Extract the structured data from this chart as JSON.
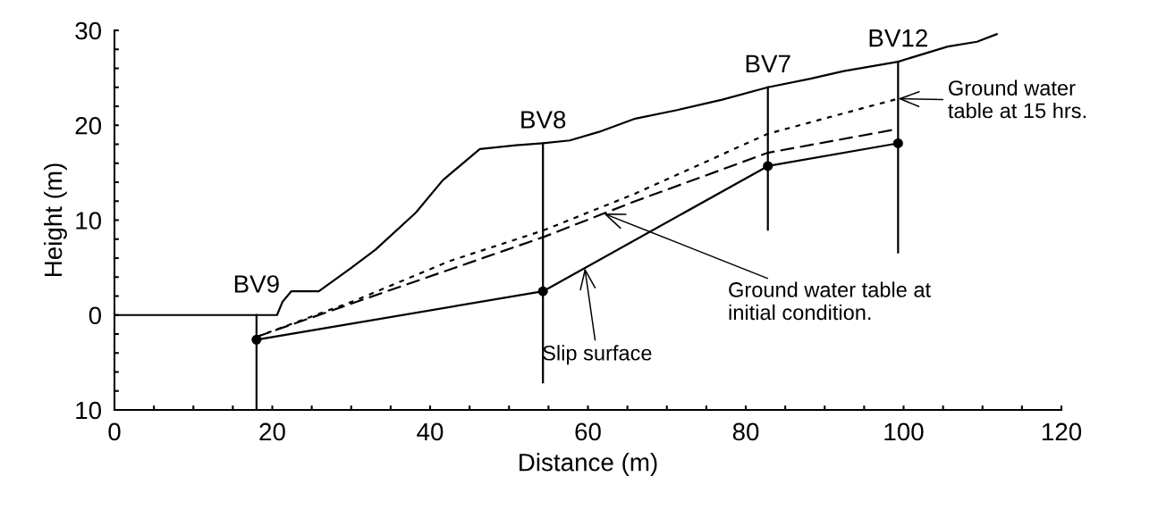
{
  "chart_data": {
    "type": "line",
    "xlabel": "Distance (m)",
    "ylabel": "Height (m)",
    "xlim": [
      0,
      120
    ],
    "ylim": [
      -10,
      30
    ],
    "xticks": [
      0,
      {
        "value": 5,
        "label": null
      },
      {
        "value": 10,
        "label": null
      },
      {
        "value": 15,
        "label": null
      },
      20,
      {
        "value": 25,
        "label": null
      },
      {
        "value": 30,
        "label": null
      },
      {
        "value": 35,
        "label": null
      },
      40,
      {
        "value": 45,
        "label": null
      },
      {
        "value": 50,
        "label": null
      },
      {
        "value": 55,
        "label": null
      },
      60,
      {
        "value": 65,
        "label": null
      },
      {
        "value": 70,
        "label": null
      },
      {
        "value": 75,
        "label": null
      },
      80,
      {
        "value": 85,
        "label": null
      },
      {
        "value": 90,
        "label": null
      },
      {
        "value": 95,
        "label": null
      },
      100,
      {
        "value": 105,
        "label": null
      },
      {
        "value": 110,
        "label": null
      },
      {
        "value": 115,
        "label": null
      },
      120
    ],
    "yticks": [
      {
        "value": -10,
        "label": "10"
      },
      {
        "value": -8,
        "label": null
      },
      {
        "value": -6,
        "label": null
      },
      {
        "value": -4,
        "label": null
      },
      {
        "value": -2,
        "label": null
      },
      0,
      {
        "value": 2,
        "label": null
      },
      {
        "value": 4,
        "label": null
      },
      {
        "value": 6,
        "label": null
      },
      {
        "value": 8,
        "label": null
      },
      10,
      {
        "value": 12,
        "label": null
      },
      {
        "value": 14,
        "label": null
      },
      {
        "value": 16,
        "label": null
      },
      {
        "value": 18,
        "label": null
      },
      20,
      {
        "value": 22,
        "label": null
      },
      {
        "value": 24,
        "label": null
      },
      {
        "value": 26,
        "label": null
      },
      {
        "value": 28,
        "label": null
      },
      30
    ],
    "grid": false,
    "legend": false,
    "series": [
      {
        "type": "line",
        "color": "#000000",
        "line_style": "solid",
        "marker": "none",
        "x": [
          0,
          18,
          20.6,
          21.3,
          22.4,
          25.9,
          29.9,
          33.1,
          38.2,
          41.6,
          46.3,
          50.9,
          54.3,
          57.7,
          61.4,
          66,
          71.3,
          77,
          82.8,
          88.2,
          92.4,
          99.3,
          105.6,
          109.3,
          111.8
        ],
        "values": [
          0,
          0,
          0,
          1.4,
          2.5,
          2.5,
          4.9,
          6.9,
          10.8,
          14.2,
          17.5,
          17.9,
          18.1,
          18.4,
          19.3,
          20.7,
          21.6,
          22.7,
          24,
          24.9,
          25.7,
          26.7,
          28.3,
          28.8,
          29.6
        ]
      },
      {
        "type": "line",
        "color": "#000000",
        "line_style": "solid",
        "marker": "circle",
        "x": [
          18,
          54.3,
          82.8,
          99.3
        ],
        "values": [
          -2.6,
          2.5,
          15.7,
          18.1
        ]
      },
      {
        "type": "line",
        "color": "#000000",
        "line_style": "dashed",
        "marker": "none",
        "x": [
          18,
          30,
          42.5,
          54.3,
          62,
          66,
          82.8,
          98.6
        ],
        "values": [
          -2.3,
          1.2,
          4.8,
          8.2,
          10.7,
          12,
          17.1,
          19.5
        ]
      },
      {
        "type": "line",
        "color": "#000000",
        "line_style": "dotted",
        "marker": "none",
        "x": [
          18,
          30.4,
          42.5,
          54.3,
          66,
          82.8,
          99.3
        ],
        "values": [
          -2.3,
          1.5,
          5.7,
          8.9,
          12.8,
          19.1,
          22.8
        ]
      },
      {
        "type": "line",
        "color": "#000000",
        "line_style": "solid",
        "marker": "none",
        "x": [
          18,
          18
        ],
        "values": [
          0,
          -10
        ]
      },
      {
        "type": "line",
        "color": "#000000",
        "line_style": "solid",
        "marker": "none",
        "x": [
          54.3,
          54.3
        ],
        "values": [
          18.1,
          -7.1
        ]
      },
      {
        "type": "line",
        "color": "#000000",
        "line_style": "solid",
        "marker": "none",
        "x": [
          82.8,
          82.8
        ],
        "values": [
          24,
          9
        ]
      },
      {
        "type": "line",
        "color": "#000000",
        "line_style": "solid",
        "marker": "none",
        "x": [
          99.3,
          99.3
        ],
        "values": [
          26.7,
          6.6
        ]
      }
    ],
    "annotations": [
      {
        "text": "BV9",
        "x": 18,
        "y": 0
      },
      {
        "text": "BV8",
        "x": 54.3,
        "y": 18.1
      },
      {
        "text": "BV7",
        "x": 82.8,
        "y": 24
      },
      {
        "text": "BV12",
        "x": 99.3,
        "y": 26.7
      },
      {
        "text": "Ground water\ntable at 15 hrs.",
        "x": 99.3,
        "y": 22.8
      },
      {
        "text": "Ground water table at\ninitial condition.",
        "x": 62,
        "y": 10.7
      },
      {
        "text": "Slip surface",
        "x": 59.6,
        "y": 4.95
      }
    ]
  }
}
